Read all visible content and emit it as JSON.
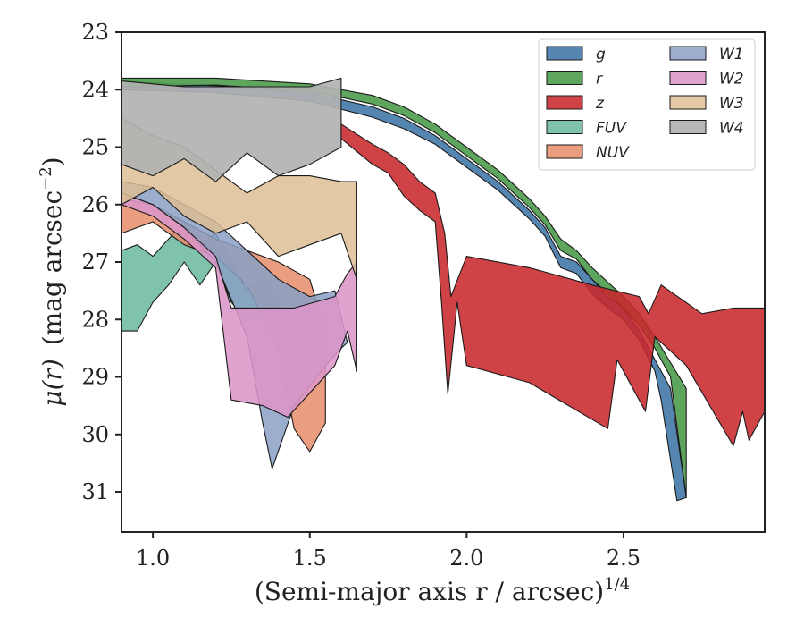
{
  "chart_data": {
    "type": "area",
    "title": "",
    "ylabel_math": "μ(r)",
    "ylabel_units": "(mag arcsec",
    "ylabel_exp": "−2",
    "ylabel_close": ")",
    "xlabel_main": "(Semi-major axis r / arcsec)",
    "xlabel_exp": "1/4",
    "xlim": [
      0.9,
      2.95
    ],
    "ylim": [
      31.7,
      23
    ],
    "y_inverted": true,
    "grid": false,
    "legend_position": "top-right",
    "x_ticks": [
      1.0,
      1.5,
      2.0,
      2.5
    ],
    "x_tick_labels": [
      "1.0",
      "1.5",
      "2.0",
      "2.5"
    ],
    "y_ticks": [
      23,
      24,
      25,
      26,
      27,
      28,
      29,
      30,
      31
    ],
    "y_tick_labels": [
      "23",
      "24",
      "25",
      "26",
      "27",
      "28",
      "29",
      "30",
      "31"
    ],
    "series": [
      {
        "name": "g",
        "color": "#4c7fae",
        "opacity": 0.95,
        "upper": [
          [
            0.9,
            23.85
          ],
          [
            1.2,
            23.93
          ],
          [
            1.5,
            24.05
          ],
          [
            1.7,
            24.3
          ],
          [
            1.8,
            24.5
          ],
          [
            1.9,
            24.8
          ],
          [
            2.0,
            25.2
          ],
          [
            2.1,
            25.6
          ],
          [
            2.2,
            26.1
          ],
          [
            2.25,
            26.4
          ],
          [
            2.3,
            26.9
          ],
          [
            2.35,
            27.0
          ],
          [
            2.4,
            27.3
          ],
          [
            2.45,
            27.6
          ],
          [
            2.5,
            27.8
          ],
          [
            2.55,
            28.2
          ],
          [
            2.6,
            28.7
          ],
          [
            2.65,
            29.2
          ],
          [
            2.7,
            31.1
          ]
        ],
        "lower": [
          [
            0.9,
            24.0
          ],
          [
            1.2,
            24.05
          ],
          [
            1.5,
            24.2
          ],
          [
            1.7,
            24.48
          ],
          [
            1.8,
            24.68
          ],
          [
            1.9,
            24.95
          ],
          [
            2.0,
            25.35
          ],
          [
            2.1,
            25.75
          ],
          [
            2.2,
            26.25
          ],
          [
            2.25,
            26.55
          ],
          [
            2.3,
            27.1
          ],
          [
            2.35,
            27.2
          ],
          [
            2.4,
            27.55
          ],
          [
            2.45,
            27.8
          ],
          [
            2.5,
            28.0
          ],
          [
            2.55,
            28.35
          ],
          [
            2.6,
            28.9
          ],
          [
            2.62,
            29.4
          ],
          [
            2.67,
            31.15
          ]
        ]
      },
      {
        "name": "r",
        "color": "#55a054",
        "opacity": 0.95,
        "upper": [
          [
            0.9,
            23.8
          ],
          [
            1.2,
            23.8
          ],
          [
            1.5,
            23.9
          ],
          [
            1.7,
            24.1
          ],
          [
            1.8,
            24.3
          ],
          [
            1.9,
            24.6
          ],
          [
            2.0,
            25.0
          ],
          [
            2.1,
            25.4
          ],
          [
            2.2,
            25.9
          ],
          [
            2.25,
            26.2
          ],
          [
            2.3,
            26.6
          ],
          [
            2.35,
            26.8
          ],
          [
            2.4,
            27.1
          ],
          [
            2.45,
            27.35
          ],
          [
            2.5,
            27.6
          ],
          [
            2.55,
            27.9
          ],
          [
            2.6,
            28.3
          ],
          [
            2.65,
            28.75
          ],
          [
            2.7,
            29.2
          ]
        ],
        "lower": [
          [
            0.9,
            23.95
          ],
          [
            1.2,
            23.92
          ],
          [
            1.5,
            24.02
          ],
          [
            1.7,
            24.25
          ],
          [
            1.8,
            24.45
          ],
          [
            1.9,
            24.75
          ],
          [
            2.0,
            25.15
          ],
          [
            2.1,
            25.55
          ],
          [
            2.2,
            26.05
          ],
          [
            2.25,
            26.35
          ],
          [
            2.3,
            26.8
          ],
          [
            2.35,
            26.95
          ],
          [
            2.4,
            27.3
          ],
          [
            2.45,
            27.55
          ],
          [
            2.5,
            27.8
          ],
          [
            2.55,
            28.1
          ],
          [
            2.6,
            28.5
          ],
          [
            2.65,
            29.0
          ],
          [
            2.7,
            31.1
          ]
        ]
      },
      {
        "name": "z",
        "color": "#c8282c",
        "opacity": 0.88,
        "upper": [
          [
            1.6,
            24.6
          ],
          [
            1.7,
            24.95
          ],
          [
            1.75,
            25.1
          ],
          [
            1.8,
            25.3
          ],
          [
            1.85,
            25.6
          ],
          [
            1.9,
            25.8
          ],
          [
            1.93,
            26.5
          ],
          [
            1.95,
            27.6
          ],
          [
            2.0,
            26.9
          ],
          [
            2.2,
            27.1
          ],
          [
            2.4,
            27.4
          ],
          [
            2.55,
            27.6
          ],
          [
            2.58,
            27.9
          ],
          [
            2.62,
            27.4
          ],
          [
            2.75,
            27.9
          ],
          [
            2.85,
            27.8
          ],
          [
            2.95,
            27.8
          ]
        ],
        "lower": [
          [
            1.6,
            24.85
          ],
          [
            1.7,
            25.3
          ],
          [
            1.75,
            25.45
          ],
          [
            1.8,
            25.85
          ],
          [
            1.85,
            26.1
          ],
          [
            1.9,
            26.3
          ],
          [
            1.92,
            27.7
          ],
          [
            1.94,
            29.3
          ],
          [
            1.97,
            27.7
          ],
          [
            2.0,
            28.8
          ],
          [
            2.2,
            29.1
          ],
          [
            2.45,
            29.9
          ],
          [
            2.48,
            28.7
          ],
          [
            2.57,
            29.6
          ],
          [
            2.6,
            28.3
          ],
          [
            2.7,
            28.8
          ],
          [
            2.85,
            30.2
          ],
          [
            2.88,
            29.6
          ],
          [
            2.9,
            30.1
          ],
          [
            2.95,
            29.6
          ]
        ]
      },
      {
        "name": "FUV",
        "color": "#6ab89f",
        "opacity": 0.85,
        "upper": [
          [
            0.9,
            26.8
          ],
          [
            0.95,
            26.7
          ],
          [
            1.0,
            26.9
          ],
          [
            1.05,
            26.6
          ],
          [
            1.1,
            26.3
          ],
          [
            1.15,
            26.7
          ],
          [
            1.2,
            26.5
          ],
          [
            1.25,
            27.0
          ],
          [
            1.3,
            27.5
          ],
          [
            1.35,
            27.3
          ],
          [
            1.4,
            27.6
          ]
        ],
        "lower": [
          [
            0.9,
            28.2
          ],
          [
            0.95,
            28.2
          ],
          [
            1.0,
            27.7
          ],
          [
            1.05,
            27.4
          ],
          [
            1.1,
            27.0
          ],
          [
            1.15,
            27.4
          ],
          [
            1.2,
            27.0
          ],
          [
            1.25,
            27.7
          ],
          [
            1.3,
            28.0
          ],
          [
            1.35,
            27.9
          ],
          [
            1.4,
            27.9
          ]
        ]
      },
      {
        "name": "NUV",
        "color": "#e88c6a",
        "opacity": 0.85,
        "upper": [
          [
            0.9,
            25.9
          ],
          [
            1.0,
            26.0
          ],
          [
            1.1,
            26.3
          ],
          [
            1.2,
            26.6
          ],
          [
            1.3,
            26.8
          ],
          [
            1.4,
            27.0
          ],
          [
            1.5,
            27.3
          ],
          [
            1.55,
            28.2
          ]
        ],
        "lower": [
          [
            0.9,
            26.5
          ],
          [
            1.0,
            26.3
          ],
          [
            1.1,
            26.7
          ],
          [
            1.2,
            26.9
          ],
          [
            1.3,
            27.4
          ],
          [
            1.4,
            28.5
          ],
          [
            1.45,
            29.9
          ],
          [
            1.5,
            30.3
          ],
          [
            1.55,
            29.8
          ]
        ]
      },
      {
        "name": "W1",
        "color": "#8aa0c6",
        "opacity": 0.85,
        "upper": [
          [
            0.9,
            25.6
          ],
          [
            1.0,
            25.7
          ],
          [
            1.1,
            26.0
          ],
          [
            1.2,
            26.3
          ],
          [
            1.3,
            26.8
          ],
          [
            1.4,
            27.3
          ],
          [
            1.5,
            27.6
          ],
          [
            1.58,
            27.5
          ],
          [
            1.62,
            28.4
          ]
        ],
        "lower": [
          [
            0.9,
            25.8
          ],
          [
            1.0,
            26.0
          ],
          [
            1.1,
            26.4
          ],
          [
            1.2,
            27.0
          ],
          [
            1.3,
            28.3
          ],
          [
            1.35,
            29.8
          ],
          [
            1.38,
            30.6
          ],
          [
            1.45,
            29.5
          ],
          [
            1.55,
            28.8
          ],
          [
            1.6,
            28.5
          ]
        ]
      },
      {
        "name": "W2",
        "color": "#dc96c8",
        "opacity": 0.88,
        "upper": [
          [
            0.9,
            25.8
          ],
          [
            1.0,
            26.0
          ],
          [
            1.1,
            26.4
          ],
          [
            1.2,
            26.9
          ],
          [
            1.25,
            27.8
          ],
          [
            1.35,
            27.8
          ],
          [
            1.45,
            27.8
          ],
          [
            1.58,
            27.6
          ],
          [
            1.62,
            27.2
          ],
          [
            1.65,
            27.0
          ]
        ],
        "lower": [
          [
            0.9,
            26.0
          ],
          [
            1.0,
            26.2
          ],
          [
            1.1,
            26.6
          ],
          [
            1.2,
            27.1
          ],
          [
            1.25,
            29.4
          ],
          [
            1.35,
            29.5
          ],
          [
            1.43,
            29.7
          ],
          [
            1.58,
            28.8
          ],
          [
            1.62,
            28.2
          ],
          [
            1.65,
            28.9
          ]
        ]
      },
      {
        "name": "W3",
        "color": "#ddbe94",
        "opacity": 0.85,
        "upper": [
          [
            0.9,
            24.5
          ],
          [
            1.0,
            24.8
          ],
          [
            1.1,
            25.0
          ],
          [
            1.2,
            25.4
          ],
          [
            1.3,
            25.8
          ],
          [
            1.4,
            25.5
          ],
          [
            1.5,
            25.5
          ],
          [
            1.6,
            25.6
          ],
          [
            1.65,
            25.6
          ]
        ],
        "lower": [
          [
            0.9,
            26.0
          ],
          [
            1.0,
            25.7
          ],
          [
            1.1,
            26.2
          ],
          [
            1.2,
            26.5
          ],
          [
            1.3,
            26.3
          ],
          [
            1.4,
            26.9
          ],
          [
            1.5,
            26.7
          ],
          [
            1.6,
            26.5
          ],
          [
            1.65,
            27.3
          ]
        ]
      },
      {
        "name": "W4",
        "color": "#b2b2b2",
        "opacity": 0.92,
        "upper": [
          [
            0.9,
            23.85
          ],
          [
            1.0,
            23.9
          ],
          [
            1.1,
            23.95
          ],
          [
            1.2,
            23.95
          ],
          [
            1.3,
            23.95
          ],
          [
            1.4,
            23.95
          ],
          [
            1.5,
            23.95
          ],
          [
            1.6,
            23.8
          ]
        ],
        "lower": [
          [
            0.9,
            25.3
          ],
          [
            1.0,
            25.5
          ],
          [
            1.1,
            25.2
          ],
          [
            1.2,
            25.6
          ],
          [
            1.3,
            25.1
          ],
          [
            1.4,
            25.5
          ],
          [
            1.5,
            25.3
          ],
          [
            1.6,
            25.0
          ]
        ]
      }
    ],
    "legend_order": [
      [
        "g",
        "r",
        "z",
        "FUV",
        "NUV"
      ],
      [
        "W1",
        "W2",
        "W3",
        "W4"
      ]
    ]
  }
}
